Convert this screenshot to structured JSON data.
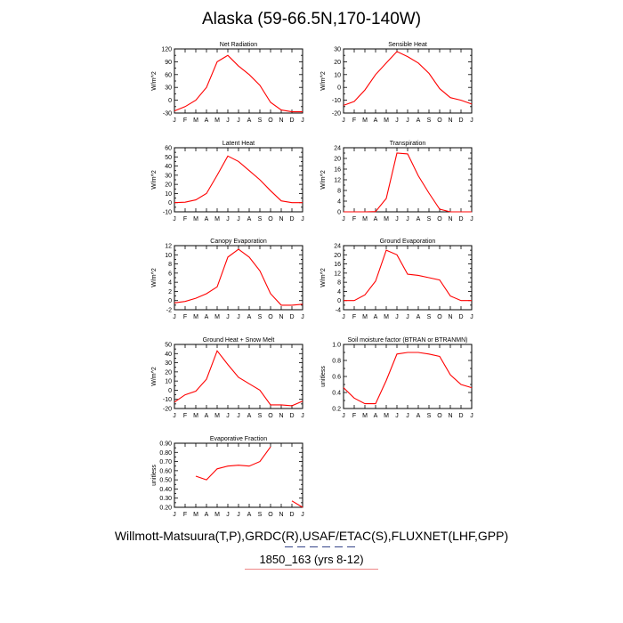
{
  "title": "Alaska (59-66.5N,170-140W)",
  "footer": {
    "line1": "Willmott-Matsuura(T,P),GRDC(R),USAF/ETAC(S),FLUXNET(LHF,GPP)",
    "line2": "1850_163 (yrs 8-12)"
  },
  "colors": {
    "line": "#ff0000",
    "axis": "#000000"
  },
  "chart_data": [
    {
      "type": "line",
      "title": "Net Radiation",
      "ylabel": "W/m^2",
      "categories": [
        "J",
        "F",
        "M",
        "A",
        "M",
        "J",
        "J",
        "A",
        "S",
        "O",
        "N",
        "D",
        "J"
      ],
      "ylim": [
        -30,
        120
      ],
      "yticks": [
        -30,
        -15,
        0,
        15,
        30,
        45,
        60,
        75,
        90,
        105,
        120
      ],
      "ytick_labels": [
        "-30",
        "",
        "0",
        "",
        "30",
        "",
        "60",
        "",
        "90",
        "",
        "120"
      ],
      "values": [
        -25,
        -15,
        0,
        30,
        90,
        105,
        80,
        60,
        35,
        -5,
        -23,
        -27,
        -27
      ]
    },
    {
      "type": "line",
      "title": "Sensible Heat",
      "ylabel": "W/m^2",
      "categories": [
        "J",
        "F",
        "M",
        "A",
        "M",
        "J",
        "J",
        "A",
        "S",
        "O",
        "N",
        "D",
        "J"
      ],
      "ylim": [
        -20,
        30
      ],
      "yticks": [
        -20,
        -15,
        -10,
        -5,
        0,
        5,
        10,
        15,
        20,
        25,
        30
      ],
      "ytick_labels": [
        "-20",
        "",
        "-10",
        "",
        "0",
        "",
        "10",
        "",
        "20",
        "",
        "30"
      ],
      "values": [
        -14,
        -11,
        -2,
        10,
        19,
        28,
        24,
        19,
        11,
        -1,
        -8,
        -10,
        -13
      ]
    },
    {
      "type": "line",
      "title": "Latent Heat",
      "ylabel": "W/m^2",
      "categories": [
        "J",
        "F",
        "M",
        "A",
        "M",
        "J",
        "J",
        "A",
        "S",
        "O",
        "N",
        "D",
        "J"
      ],
      "ylim": [
        -10,
        60
      ],
      "yticks": [
        -10,
        -5,
        0,
        5,
        10,
        15,
        20,
        25,
        30,
        35,
        40,
        45,
        50,
        55,
        60
      ],
      "ytick_labels": [
        "-10",
        "",
        "0",
        "",
        "10",
        "",
        "20",
        "",
        "30",
        "",
        "40",
        "",
        "50",
        "",
        "60"
      ],
      "values": [
        0,
        0.5,
        3,
        10,
        30,
        51,
        45,
        35,
        25,
        13,
        2,
        0,
        0
      ]
    },
    {
      "type": "line",
      "title": "Transpiration",
      "ylabel": "W/m^2",
      "categories": [
        "J",
        "F",
        "M",
        "A",
        "M",
        "J",
        "J",
        "A",
        "S",
        "O",
        "N",
        "D",
        "J"
      ],
      "ylim": [
        0,
        24
      ],
      "yticks": [
        0,
        2,
        4,
        6,
        8,
        10,
        12,
        14,
        16,
        18,
        20,
        22,
        24
      ],
      "ytick_labels": [
        "0",
        "",
        "4",
        "",
        "8",
        "",
        "12",
        "",
        "16",
        "",
        "20",
        "",
        "24"
      ],
      "values": [
        0,
        0,
        0,
        0.1,
        5,
        22,
        21.7,
        13.5,
        7,
        1,
        0,
        0,
        0
      ]
    },
    {
      "type": "line",
      "title": "Canopy Evaporation",
      "ylabel": "W/m^2",
      "categories": [
        "J",
        "F",
        "M",
        "A",
        "M",
        "J",
        "J",
        "A",
        "S",
        "O",
        "N",
        "D",
        "J"
      ],
      "ylim": [
        -2,
        12
      ],
      "yticks": [
        -2,
        -1,
        0,
        1,
        2,
        3,
        4,
        5,
        6,
        7,
        8,
        9,
        10,
        11,
        12
      ],
      "ytick_labels": [
        "-2",
        "",
        "0",
        "",
        "2",
        "",
        "4",
        "",
        "6",
        "",
        "8",
        "",
        "10",
        "",
        "12"
      ],
      "values": [
        -0.5,
        -0.2,
        0.5,
        1.5,
        3,
        9.5,
        11.2,
        9.5,
        6.5,
        1.5,
        -1,
        -1,
        -0.8
      ]
    },
    {
      "type": "line",
      "title": "Ground Evaporation",
      "ylabel": "W/m^2",
      "categories": [
        "J",
        "F",
        "M",
        "A",
        "M",
        "J",
        "J",
        "A",
        "S",
        "O",
        "N",
        "D",
        "J"
      ],
      "ylim": [
        -4,
        24
      ],
      "yticks": [
        -4,
        -2,
        0,
        2,
        4,
        6,
        8,
        10,
        12,
        14,
        16,
        18,
        20,
        22,
        24
      ],
      "ytick_labels": [
        "-4",
        "",
        "0",
        "",
        "4",
        "",
        "8",
        "",
        "12",
        "",
        "16",
        "",
        "20",
        "",
        "24"
      ],
      "values": [
        0,
        0,
        2.5,
        8.5,
        22,
        20,
        11.5,
        11,
        10,
        9,
        2,
        0,
        0
      ]
    },
    {
      "type": "line",
      "title": "Ground Heat + Snow Melt",
      "ylabel": "W/m^2",
      "categories": [
        "J",
        "F",
        "M",
        "A",
        "M",
        "J",
        "J",
        "A",
        "S",
        "O",
        "N",
        "D",
        "J"
      ],
      "ylim": [
        -20,
        50
      ],
      "yticks": [
        -20,
        -15,
        -10,
        -5,
        0,
        5,
        10,
        15,
        20,
        25,
        30,
        35,
        40,
        45,
        50
      ],
      "ytick_labels": [
        "-20",
        "",
        "-10",
        "",
        "0",
        "",
        "10",
        "",
        "20",
        "",
        "30",
        "",
        "40",
        "",
        "50"
      ],
      "values": [
        -13,
        -5,
        -1,
        12,
        43,
        28,
        14,
        7,
        0,
        -16,
        -16,
        -17,
        -12
      ]
    },
    {
      "type": "line",
      "title": "Soil moisture factor (BTRAN or BTRANMN)",
      "ylabel": "unitless",
      "categories": [
        "J",
        "F",
        "M",
        "A",
        "M",
        "J",
        "J",
        "A",
        "S",
        "O",
        "N",
        "D",
        "J"
      ],
      "ylim": [
        0.2,
        1.0
      ],
      "yticks": [
        0.2,
        0.3,
        0.4,
        0.5,
        0.6,
        0.7,
        0.8,
        0.9,
        1.0
      ],
      "ytick_labels": [
        "0.2",
        "",
        "0.4",
        "",
        "0.6",
        "",
        "0.8",
        "",
        "1.0"
      ],
      "values": [
        0.46,
        0.33,
        0.26,
        0.26,
        0.55,
        0.88,
        0.9,
        0.9,
        0.88,
        0.85,
        0.62,
        0.5,
        0.46
      ]
    },
    {
      "type": "line",
      "title": "Evaporative Fraction",
      "ylabel": "unitless",
      "categories": [
        "J",
        "F",
        "M",
        "A",
        "M",
        "J",
        "J",
        "A",
        "S",
        "O",
        "N",
        "D",
        "J"
      ],
      "ylim": [
        0.2,
        0.9
      ],
      "yticks": [
        0.2,
        0.25,
        0.3,
        0.35,
        0.4,
        0.45,
        0.5,
        0.55,
        0.6,
        0.65,
        0.7,
        0.75,
        0.8,
        0.85,
        0.9
      ],
      "ytick_labels": [
        "0.20",
        "",
        "0.30",
        "",
        "0.40",
        "",
        "0.50",
        "",
        "0.60",
        "",
        "0.70",
        "",
        "0.80",
        "",
        "0.90"
      ],
      "values": [
        null,
        null,
        0.54,
        0.5,
        0.62,
        0.65,
        0.66,
        0.65,
        0.7,
        0.86,
        null,
        0.27,
        0.2
      ]
    }
  ]
}
